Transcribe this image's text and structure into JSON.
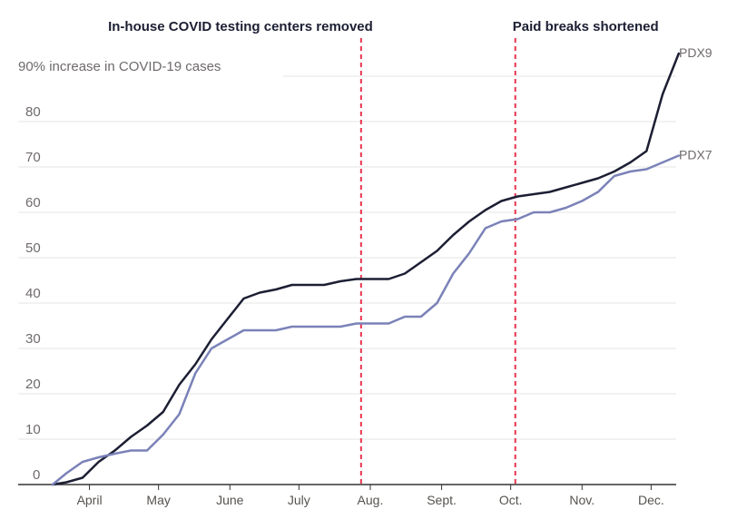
{
  "chart_data": {
    "type": "line",
    "ylabel": "90% increase in COVID-19 cases",
    "ylim": [
      0,
      90
    ],
    "yticks": [
      "0",
      "10",
      "20",
      "30",
      "40",
      "50",
      "60",
      "70",
      "80"
    ],
    "grid": true,
    "x_tick_labels": [
      "April",
      "May",
      "June",
      "July",
      "Aug.",
      "Sept.",
      "Oct.",
      "Nov.",
      "Dec."
    ],
    "x_tick_dates": [
      "2020-04-01",
      "2020-05-01",
      "2020-06-01",
      "2020-07-01",
      "2020-08-01",
      "2020-09-01",
      "2020-10-01",
      "2020-11-01",
      "2020-12-01"
    ],
    "x": [
      "2020-03-16",
      "2020-03-22",
      "2020-03-29",
      "2020-04-05",
      "2020-04-12",
      "2020-04-19",
      "2020-04-26",
      "2020-05-03",
      "2020-05-10",
      "2020-05-17",
      "2020-05-24",
      "2020-05-31",
      "2020-06-07",
      "2020-06-14",
      "2020-06-21",
      "2020-06-28",
      "2020-07-05",
      "2020-07-12",
      "2020-07-19",
      "2020-07-26",
      "2020-08-02",
      "2020-08-09",
      "2020-08-16",
      "2020-08-23",
      "2020-08-30",
      "2020-09-06",
      "2020-09-13",
      "2020-09-20",
      "2020-09-27",
      "2020-10-04",
      "2020-10-11",
      "2020-10-18",
      "2020-10-25",
      "2020-11-01",
      "2020-11-08",
      "2020-11-15",
      "2020-11-22",
      "2020-11-29",
      "2020-12-06",
      "2020-12-13"
    ],
    "series": [
      {
        "name": "PDX9",
        "color": "#1c1f33",
        "values": [
          0,
          0.5,
          1.5,
          5,
          7.5,
          10.5,
          13,
          16,
          22,
          26.5,
          32,
          36.5,
          41,
          42.3,
          43,
          44,
          44,
          44,
          44.8,
          45.3,
          45.3,
          45.3,
          46.5,
          49,
          51.5,
          55,
          58,
          60.5,
          62.5,
          63.5,
          64,
          64.5,
          65.5,
          66.5,
          67.5,
          69,
          71,
          73.5,
          86,
          95
        ]
      },
      {
        "name": "PDX7",
        "color": "#7a82b8",
        "values": [
          0,
          2.5,
          5,
          6,
          6.8,
          7.5,
          7.5,
          11,
          15.5,
          24.5,
          30,
          32,
          34,
          34,
          34,
          34.8,
          34.8,
          34.8,
          34.8,
          35.5,
          35.5,
          35.5,
          37,
          37,
          40,
          46.5,
          51,
          56.5,
          58,
          58.5,
          60,
          60,
          61,
          62.5,
          64.5,
          68,
          69,
          69.5,
          71,
          72.5
        ]
      }
    ],
    "annotations": [
      {
        "label": "In-house COVID testing centers removed",
        "date": "2020-07-28",
        "color": "#e8344e"
      },
      {
        "label": "Paid breaks shortened",
        "date": "2020-10-03",
        "color": "#e8344e"
      }
    ]
  }
}
